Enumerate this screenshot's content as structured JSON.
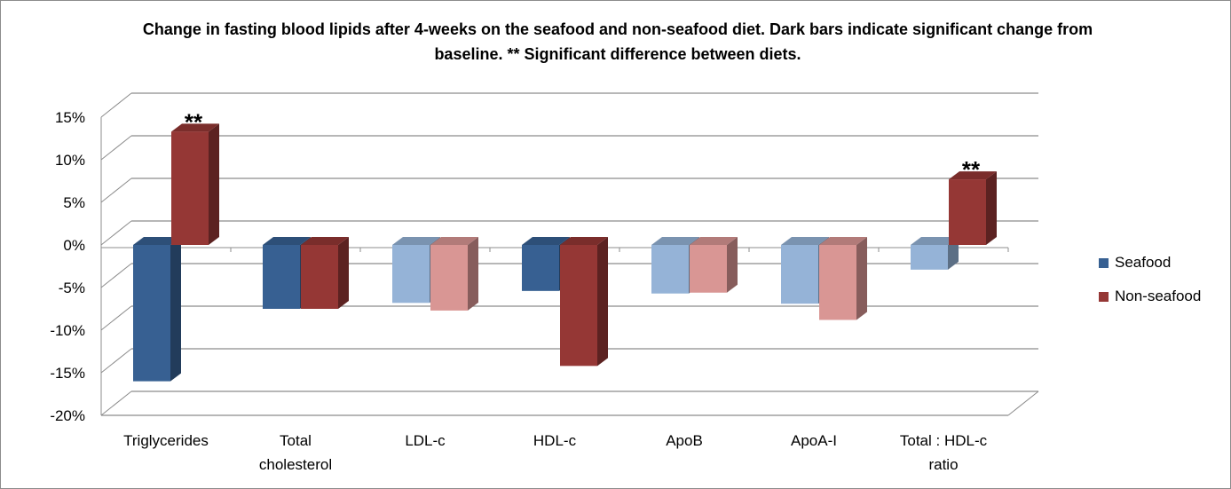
{
  "chart_data": {
    "type": "bar",
    "title": "Change in fasting blood lipids after 4-weeks on the seafood and non-seafood diet. Dark bars indicate significant change from baseline. ** Significant difference between diets.",
    "categories": [
      "Triglycerides",
      "Total cholesterol",
      "LDL-c",
      "HDL-c",
      "ApoB",
      "ApoA-I",
      "Total : HDL-c ratio"
    ],
    "category_lines": [
      [
        "Triglycerides"
      ],
      [
        "Total",
        "cholesterol"
      ],
      [
        "LDL-c"
      ],
      [
        "HDL-c"
      ],
      [
        "ApoB"
      ],
      [
        "ApoA-I"
      ],
      [
        "Total : HDL-c",
        "ratio"
      ]
    ],
    "series": [
      {
        "name": "Seafood",
        "values": [
          -16.0,
          -7.5,
          -6.8,
          -5.4,
          -5.7,
          -6.9,
          -2.9
        ],
        "significant": [
          true,
          true,
          false,
          true,
          false,
          false,
          false
        ],
        "color": "#376092",
        "color_light": "#95B3D7"
      },
      {
        "name": "Non-seafood",
        "values": [
          13.3,
          -7.5,
          -7.7,
          -14.2,
          -5.6,
          -8.8,
          7.7
        ],
        "significant": [
          true,
          true,
          false,
          true,
          false,
          false,
          true
        ],
        "color": "#953735",
        "color_light": "#D99694"
      }
    ],
    "annotations": [
      {
        "category": "Triglycerides",
        "text": "**"
      },
      {
        "category": "Total : HDL-c ratio",
        "text": "**"
      }
    ],
    "yticks": [
      "15%",
      "10%",
      "5%",
      "0%",
      "-5%",
      "-10%",
      "-15%",
      "-20%"
    ],
    "ylim": [
      -20,
      15
    ],
    "grid": true,
    "legend_position": "right"
  }
}
